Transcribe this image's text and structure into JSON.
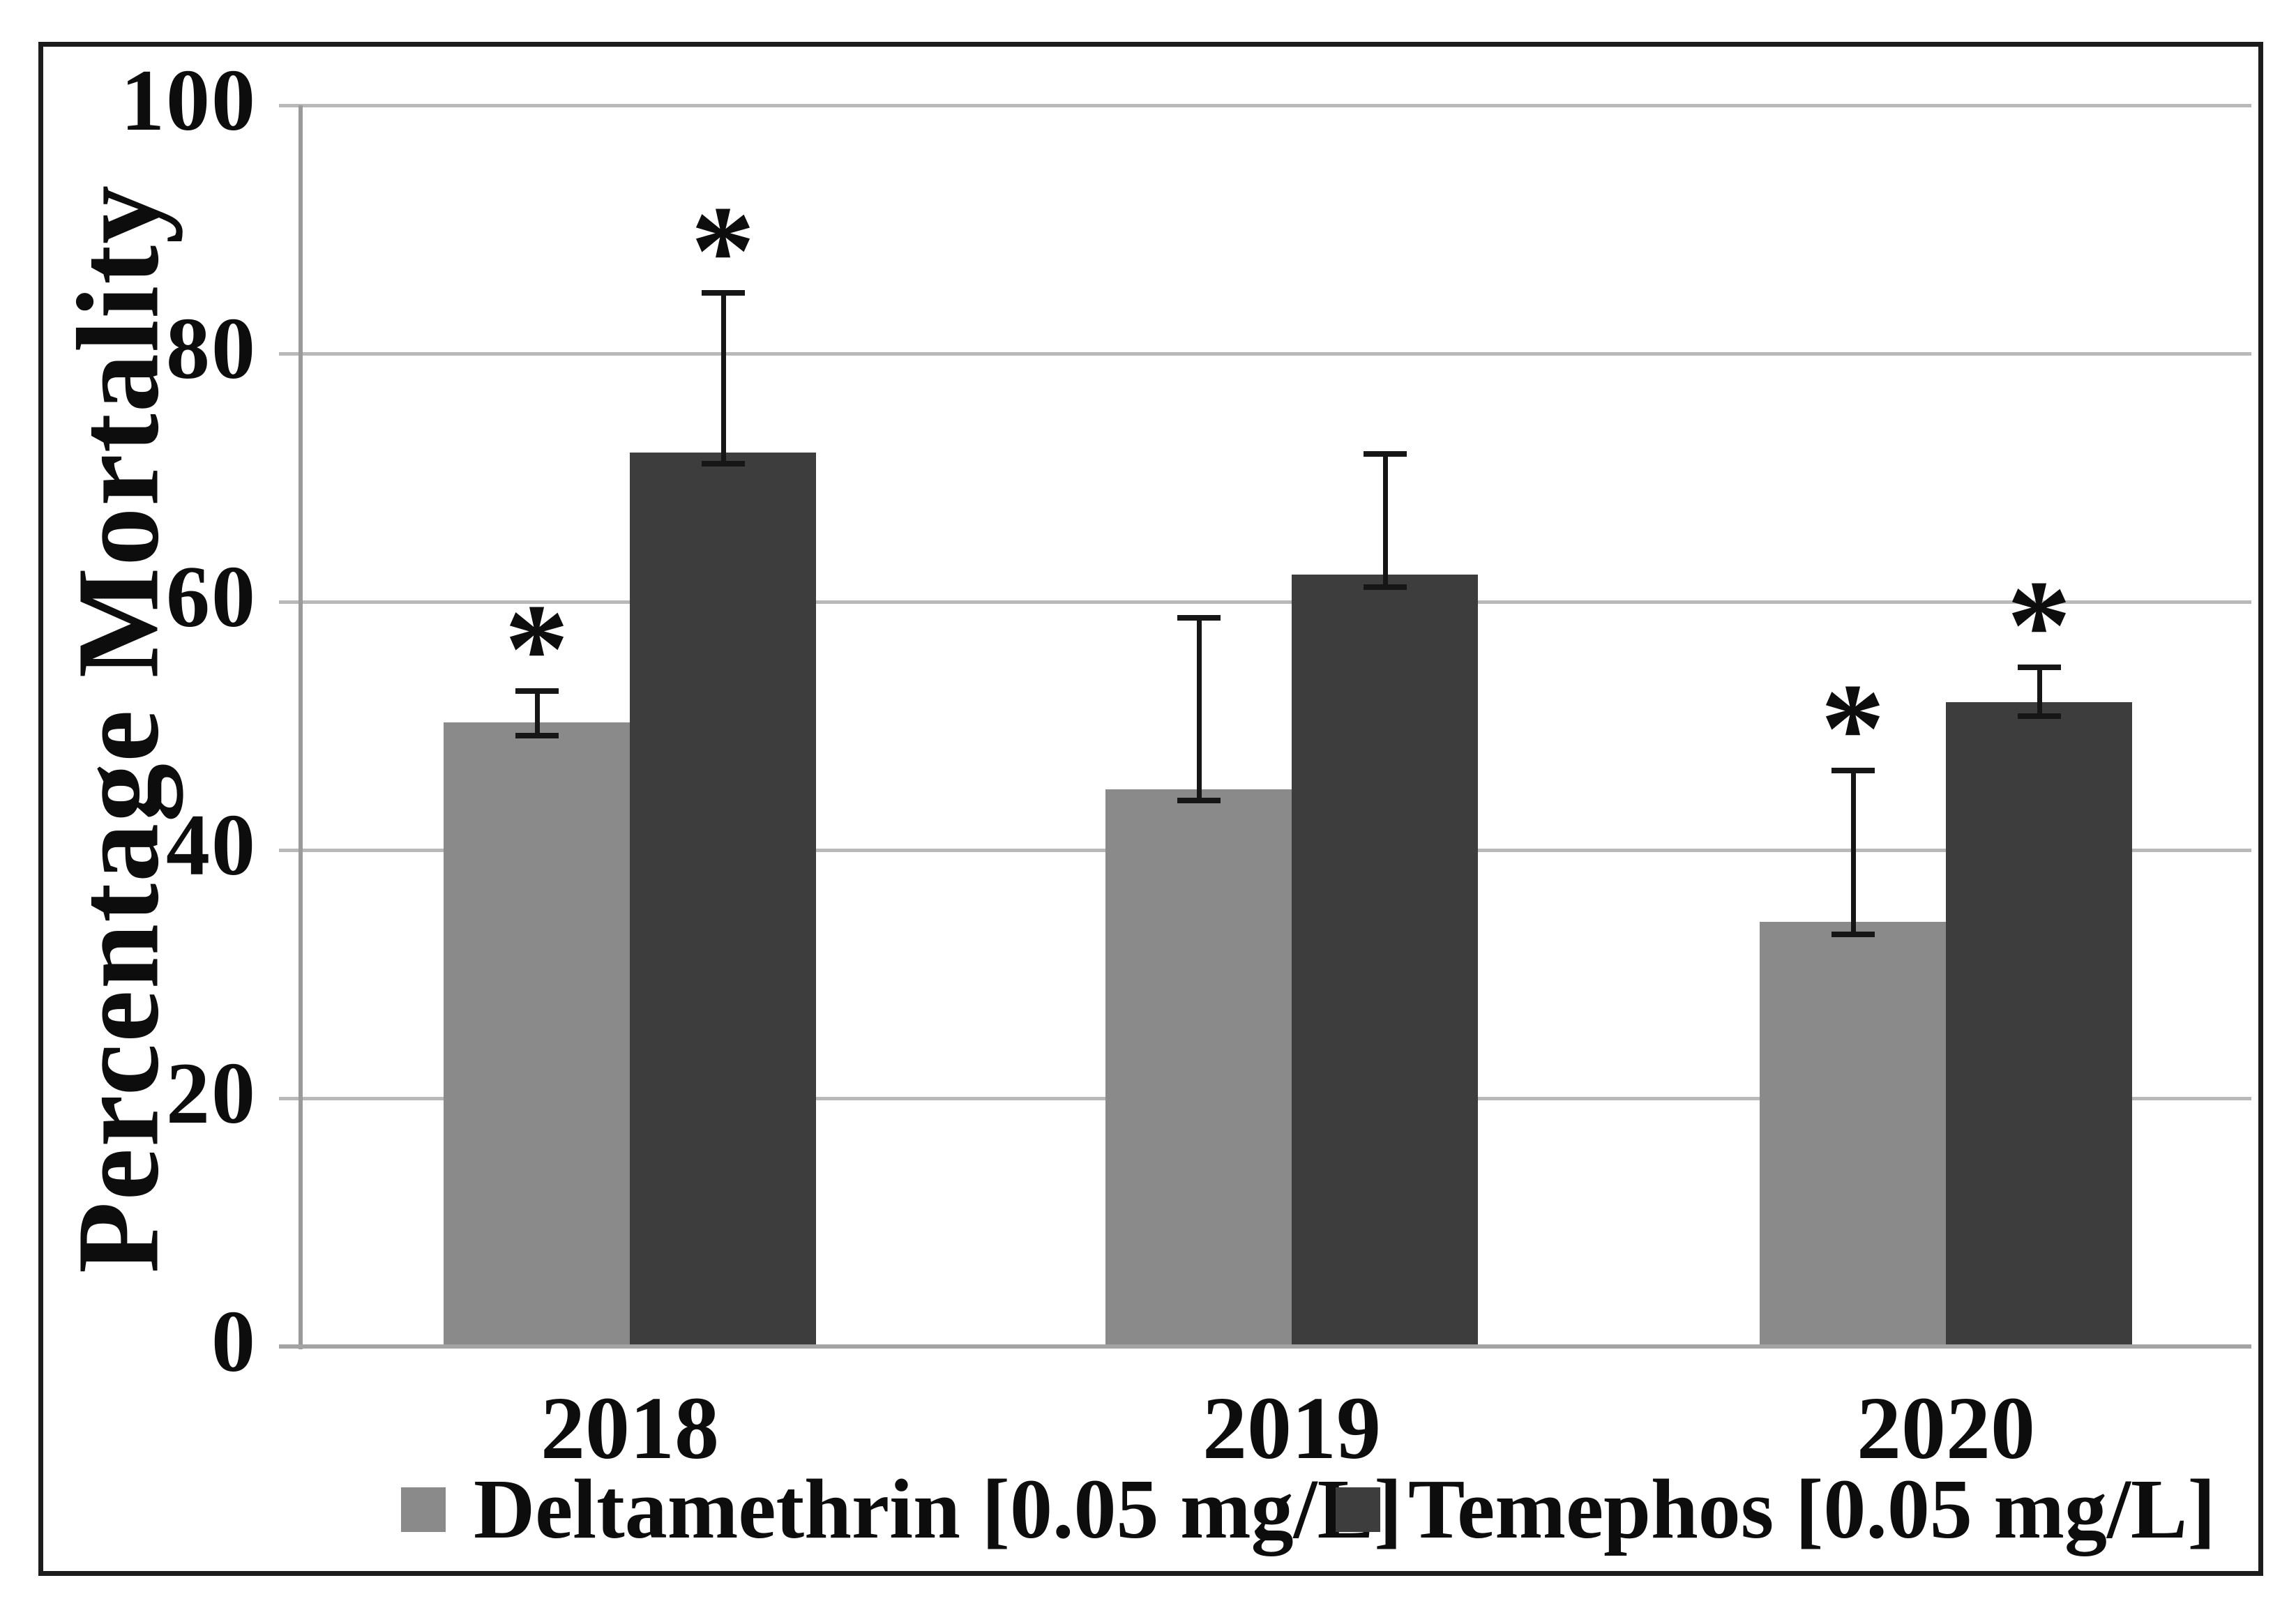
{
  "figure": {
    "ylabel": "Percentage Mortality"
  },
  "chart_data": {
    "type": "bar",
    "title": "",
    "xlabel": "",
    "ylabel": "Percentage Mortality",
    "ylim": [
      0,
      100
    ],
    "y_ticks": [
      0,
      20,
      40,
      60,
      80,
      100
    ],
    "grid": true,
    "legend_position": "bottom",
    "significance_marker": "*",
    "categories": [
      "2018",
      "2019",
      "2020"
    ],
    "series": [
      {
        "name": "Deltamethrin [0.05 mg/L]",
        "color": "#8a8a8a",
        "values": [
          50.3,
          44.9,
          34.2
        ],
        "err_low": [
          49.2,
          44.0,
          33.2
        ],
        "err_high": [
          52.8,
          58.7,
          46.4
        ],
        "significant": [
          true,
          false,
          true
        ]
      },
      {
        "name": "Temephos [0.05 mg/L]",
        "color": "#3d3d3d",
        "values": [
          72.0,
          62.2,
          51.9
        ],
        "err_low": [
          71.1,
          61.2,
          50.8
        ],
        "err_high": [
          84.9,
          71.9,
          54.7
        ],
        "significant": [
          true,
          false,
          true
        ]
      }
    ]
  }
}
